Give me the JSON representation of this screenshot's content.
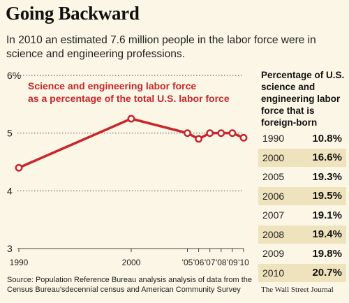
{
  "title": "Going Backward",
  "subtitle": "In 2010 an estimated 7.6 million people in the labor force were in science and engineering professions.",
  "chart_data": {
    "type": "line",
    "annotation": [
      "Science and engineering labor force",
      "as a percentage of the total U.S. labor force"
    ],
    "x": [
      1990,
      2000,
      2005,
      2006,
      2007,
      2008,
      2009,
      2010
    ],
    "x_tick_labels": [
      "1990",
      "2000",
      "'05",
      "'06",
      "'07",
      "'08",
      "'09",
      "'10"
    ],
    "series": [
      {
        "values": [
          4.4,
          5.25,
          5.0,
          4.9,
          5.0,
          5.0,
          5.0,
          4.92
        ],
        "color": "#c8262a"
      }
    ],
    "y_ticks": [
      3,
      4,
      5,
      6
    ],
    "y_tick_labels": [
      "3",
      "4",
      "5",
      "6%"
    ],
    "ylim": [
      3,
      6
    ],
    "xlim": [
      1990,
      2010
    ],
    "grid": true
  },
  "table": {
    "header": "Percentage of U.S. science and engineering labor force that is foreign-born",
    "rows": [
      {
        "year": "1990",
        "pct": "10.8%"
      },
      {
        "year": "2000",
        "pct": "16.6%"
      },
      {
        "year": "2005",
        "pct": "19.3%"
      },
      {
        "year": "2006",
        "pct": "19.5%"
      },
      {
        "year": "2007",
        "pct": "19.1%"
      },
      {
        "year": "2008",
        "pct": "19.4%"
      },
      {
        "year": "2009",
        "pct": "19.8%"
      },
      {
        "year": "2010",
        "pct": "20.7%"
      }
    ]
  },
  "source": "Source: Population Reference Bureau analysis analysis of data from the Census Bureau'sdecennial census and American Community Survey",
  "credit": "The Wall Street Journal"
}
